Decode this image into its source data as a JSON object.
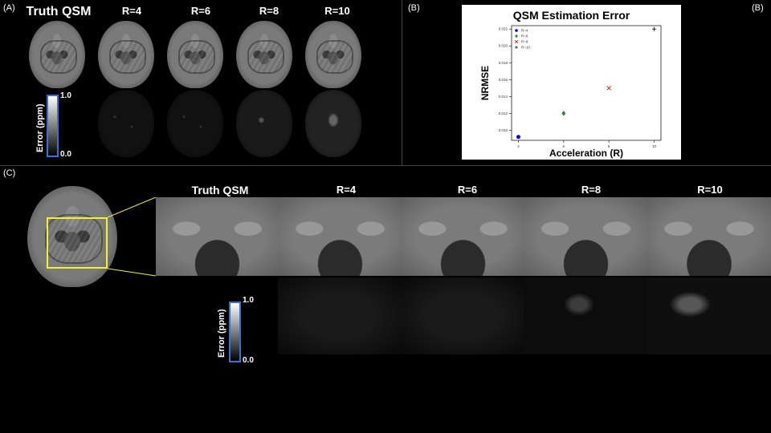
{
  "panels": {
    "A": "(A)",
    "B_left": "(B)",
    "B_right": "(B)",
    "C": "(C)"
  },
  "panel_a": {
    "columns": [
      "Truth QSM",
      "R=4",
      "R=6",
      "R=8",
      "R=10"
    ],
    "colorbar": {
      "label": "Error (ppm)",
      "max": "1.0",
      "min": "0.0"
    }
  },
  "panel_c": {
    "columns": [
      "Truth QSM",
      "R=4",
      "R=6",
      "R=8",
      "R=10"
    ],
    "colorbar": {
      "label": "Error (ppm)",
      "max": "1.0",
      "min": "0.0"
    },
    "highlight_color": "#f4f230"
  },
  "colors": {
    "background": "#000000",
    "colorbar_border": "#3a6fd8",
    "r4": "#0000ff",
    "r6": "#228b22",
    "r8": "#ff0000",
    "r10": "#000000"
  },
  "chart_data": {
    "type": "scatter",
    "title": "QSM Estimation Error",
    "xlabel": "Acceleration (R)",
    "ylabel": "NRMSE",
    "xlim": [
      3.7,
      10.3
    ],
    "ylim": [
      0.0088,
      0.0224
    ],
    "xticks": [
      "4",
      "6",
      "8",
      "10"
    ],
    "yticks": [
      "0.010",
      "0.012",
      "0.014",
      "0.016",
      "0.018",
      "0.020",
      "0.022"
    ],
    "legend_position": "top-left",
    "series": [
      {
        "name": "R=4",
        "x": 4,
        "y": 0.0092,
        "marker": "circle",
        "color": "#0000ff"
      },
      {
        "name": "R=6",
        "x": 6,
        "y": 0.012,
        "marker": "diamond",
        "color": "#228b22"
      },
      {
        "name": "R=8",
        "x": 8,
        "y": 0.015,
        "marker": "x",
        "color": "#ff0000"
      },
      {
        "name": "R=10",
        "x": 10,
        "y": 0.022,
        "marker": "plus",
        "color": "#000000"
      }
    ]
  }
}
